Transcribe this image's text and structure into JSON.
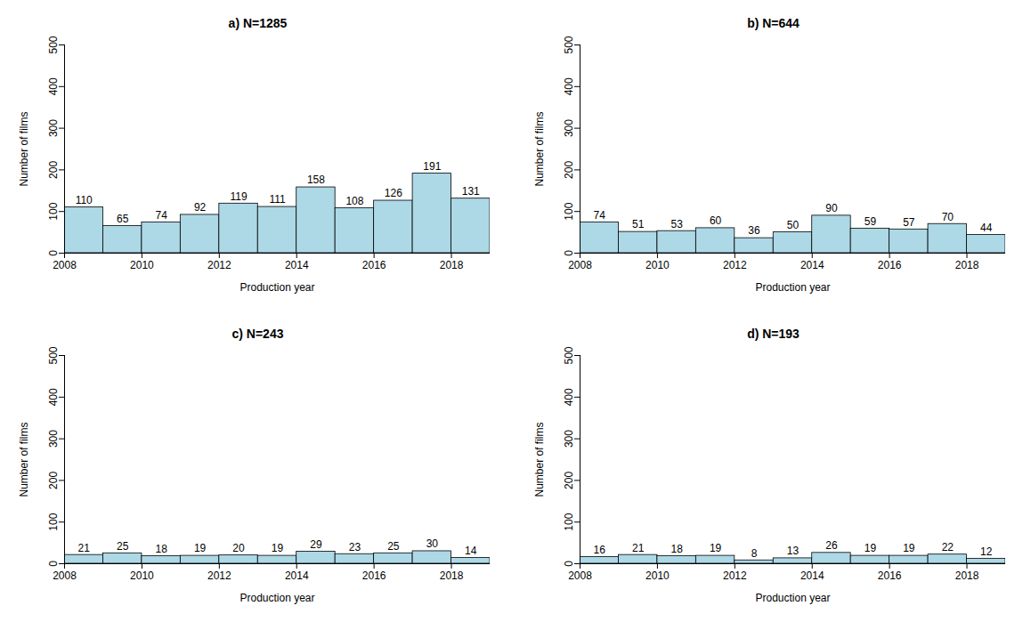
{
  "chart_data": [
    {
      "type": "histogram",
      "title": "a) N=1285",
      "xlabel": "Production year",
      "ylabel": "Number of films",
      "bins": [
        2008,
        2009,
        2010,
        2011,
        2012,
        2013,
        2014,
        2015,
        2016,
        2017,
        2018,
        2019
      ],
      "values": [
        110,
        65,
        74,
        92,
        119,
        111,
        158,
        108,
        126,
        191,
        131
      ],
      "color": "#add8e6",
      "xlim": [
        2008,
        2019
      ],
      "ylim": [
        0,
        500
      ],
      "xticks": [
        2008,
        2010,
        2012,
        2014,
        2016,
        2018
      ],
      "yticks": [
        0,
        100,
        200,
        300,
        400,
        500
      ],
      "data_labels": true,
      "grid": false
    },
    {
      "type": "histogram",
      "title": "b) N=644",
      "xlabel": "Production year",
      "ylabel": "Number of films",
      "bins": [
        2008,
        2009,
        2010,
        2011,
        2012,
        2013,
        2014,
        2015,
        2016,
        2017,
        2018,
        2019
      ],
      "values": [
        74,
        51,
        53,
        60,
        36,
        50,
        90,
        59,
        57,
        70,
        44
      ],
      "color": "#add8e6",
      "xlim": [
        2008,
        2019
      ],
      "ylim": [
        0,
        500
      ],
      "xticks": [
        2008,
        2010,
        2012,
        2014,
        2016,
        2018
      ],
      "yticks": [
        0,
        100,
        200,
        300,
        400,
        500
      ],
      "data_labels": true,
      "grid": false
    },
    {
      "type": "histogram",
      "title": "c) N=243",
      "xlabel": "Production year",
      "ylabel": "Number of films",
      "bins": [
        2008,
        2009,
        2010,
        2011,
        2012,
        2013,
        2014,
        2015,
        2016,
        2017,
        2018,
        2019
      ],
      "values": [
        21,
        25,
        18,
        19,
        20,
        19,
        29,
        23,
        25,
        30,
        14
      ],
      "color": "#add8e6",
      "xlim": [
        2008,
        2019
      ],
      "ylim": [
        0,
        500
      ],
      "xticks": [
        2008,
        2010,
        2012,
        2014,
        2016,
        2018
      ],
      "yticks": [
        0,
        100,
        200,
        300,
        400,
        500
      ],
      "data_labels": true,
      "grid": false
    },
    {
      "type": "histogram",
      "title": "d) N=193",
      "xlabel": "Production year",
      "ylabel": "Number of films",
      "bins": [
        2008,
        2009,
        2010,
        2011,
        2012,
        2013,
        2014,
        2015,
        2016,
        2017,
        2018,
        2019
      ],
      "values": [
        16,
        21,
        18,
        19,
        8,
        13,
        26,
        19,
        19,
        22,
        12
      ],
      "color": "#add8e6",
      "xlim": [
        2008,
        2019
      ],
      "ylim": [
        0,
        500
      ],
      "xticks": [
        2008,
        2010,
        2012,
        2014,
        2016,
        2018
      ],
      "yticks": [
        0,
        100,
        200,
        300,
        400,
        500
      ],
      "data_labels": true,
      "grid": false
    }
  ]
}
